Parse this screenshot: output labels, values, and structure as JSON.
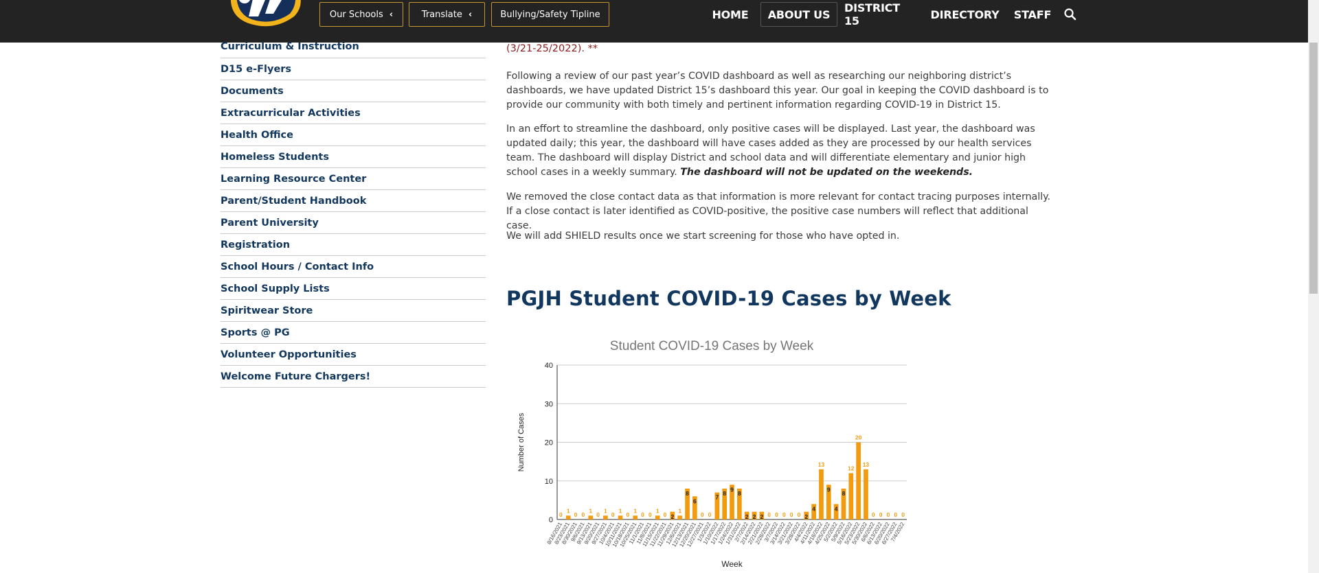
{
  "header": {
    "buttons": [
      {
        "label": "Our Schools",
        "chevron": "‹"
      },
      {
        "label": "Translate",
        "chevron": "‹"
      },
      {
        "label": "Bullying/Safety Tipline"
      }
    ],
    "nav": [
      "HOME",
      "ABOUT US",
      "DISTRICT 15",
      "DIRECTORY",
      "STAFF"
    ],
    "active_nav": "ABOUT US",
    "search_icon": "search-icon",
    "logo_icon": "charger-logo-icon",
    "colors": {
      "bar": "#232323",
      "gold": "#c9972b",
      "navy": "#12375f"
    }
  },
  "sidebar": {
    "items": [
      "Curriculum & Instruction",
      "D15 e-Flyers",
      "Documents",
      "Extracurricular Activities",
      "Health Office",
      "Homeless Students",
      "Learning Resource Center",
      "Parent/Student Handbook",
      "Parent University",
      "Registration",
      "School Hours / Contact Info",
      "School Supply Lists",
      "Spiritwear Store",
      "Sports @ PG",
      "Volunteer Opportunities",
      "Welcome Future Chargers!"
    ]
  },
  "content": {
    "alert_fragment": "(3/21-25/2022). **",
    "p1": "Following a review of our past year’s COVID dashboard as well as researching our neighboring district’s dashboards, we have updated District 15’s dashboard this year. Our goal in keeping the COVID dashboard is to provide our community with both timely and pertinent information regarding COVID-19 in District 15.",
    "p2_text": "In an effort to streamline the dashboard, only positive cases will be displayed. Last year, the dashboard was updated daily; this year, the dashboard will have cases added as they are processed by our health services team. The dashboard will display District and school data and will differentiate elementary and junior high school cases in a weekly summary.",
    "p2_emph": "The dashboard will not be updated on the weekends.",
    "p3": "We removed the close contact data as that information is more relevant for contact tracing purposes internally. If a close contact is later identified as COVID-positive, the positive case numbers will reflect that additional case.",
    "p4": "We will add SHIELD results once we start screening for those who have opted in.",
    "section_title": "PGJH Student COVID-19 Cases by Week"
  },
  "chart_data": {
    "type": "bar",
    "title": "Student COVID-19 Cases by Week",
    "xlabel": "Week",
    "ylabel": "Number of Cases",
    "ylim": [
      0,
      40
    ],
    "yticks": [
      0,
      10,
      20,
      30,
      40
    ],
    "grid": true,
    "bar_color": "#f29b0f",
    "categories": [
      "8/16/2021",
      "8/23/2021",
      "8/30/2021",
      "9/6/2021",
      "9/13/2021",
      "9/20/2021",
      "9/27/2021",
      "10/4/2021",
      "10/11/2021",
      "10/18/2021",
      "10/25/2021",
      "11/1/2021",
      "11/8/2021",
      "11/15/2021",
      "11/22/2021",
      "11/29/2021",
      "12/6/2021",
      "12/13/2021",
      "12/20/2021",
      "12/27/2021",
      "1/3/2022",
      "1/10/2022",
      "1/17/2022",
      "1/24/2022",
      "1/31/2022",
      "2/7/2022",
      "2/14/2022",
      "2/21/2022",
      "2/28/2022",
      "3/7/2022",
      "3/14/2022",
      "3/21/2022",
      "3/28/2022",
      "4/4/2022",
      "4/11/2022",
      "4/18/2022",
      "4/25/2022",
      "5/2/2022",
      "5/9/2022",
      "5/16/2022",
      "5/23/2022",
      "5/30/2022",
      "6/6/2022",
      "6/13/2022",
      "6/20/2022",
      "6/27/2022",
      "7/4/2022"
    ],
    "values": [
      0,
      1,
      0,
      0,
      1,
      0,
      1,
      0,
      1,
      0,
      1,
      0,
      0,
      1,
      0,
      2,
      1,
      8,
      6,
      0,
      0,
      7,
      8,
      9,
      8,
      2,
      2,
      2,
      0,
      0,
      0,
      0,
      0,
      2,
      4,
      13,
      9,
      4,
      8,
      12,
      20,
      13,
      0,
      0,
      0,
      0,
      0
    ]
  }
}
